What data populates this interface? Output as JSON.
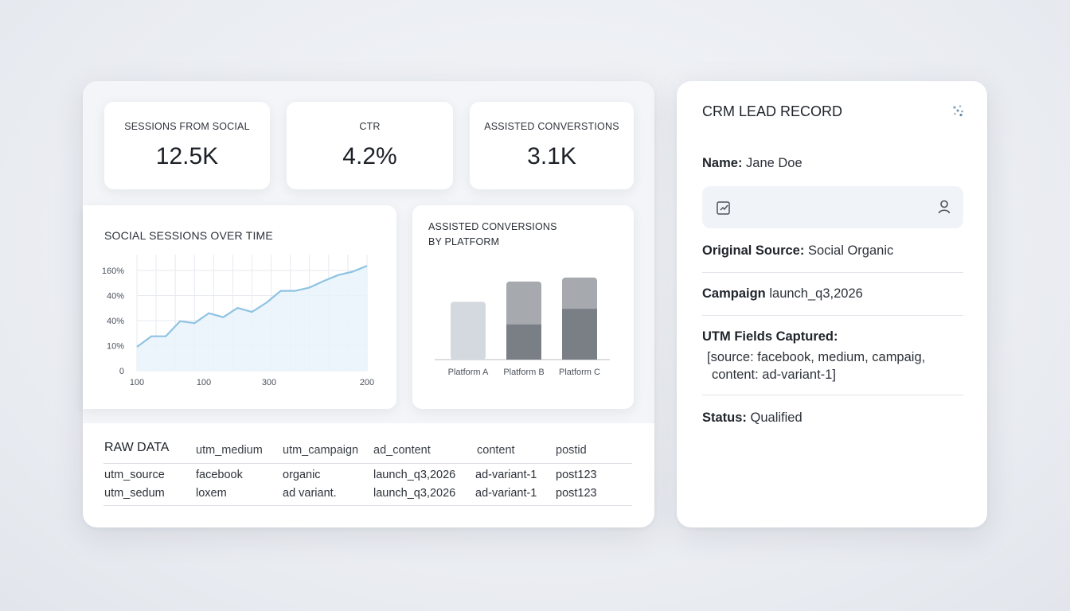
{
  "kpis": [
    {
      "label": "SESSIONS FROM SOCIAL",
      "value": "12.5K"
    },
    {
      "label": "CTR",
      "value": "4.2%"
    },
    {
      "label": "ASSISTED CONVERSTIONS",
      "value": "3.1K"
    }
  ],
  "line_chart": {
    "title": "SOCIAL SESSIONS OVER TIME"
  },
  "bar_chart": {
    "title_line1": "ASSISTED CONVERSIONS",
    "title_line2": "BY PLATFORM"
  },
  "chart_data": [
    {
      "type": "area",
      "title": "SOCIAL SESSIONS OVER TIME",
      "y_tick_labels": [
        "0",
        "10%",
        "40%",
        "40%",
        "160%"
      ],
      "x_tick_labels": [
        "100",
        "100",
        "300",
        "200"
      ],
      "series": [
        {
          "values": [
            0.0,
            0.16,
            0.16,
            0.39,
            0.36,
            0.51,
            0.45,
            0.59,
            0.53,
            0.67,
            0.85,
            0.85,
            0.9,
            1.0,
            1.09,
            1.14,
            1.23
          ]
        }
      ],
      "ylim": [
        0,
        1.4
      ],
      "grid": true,
      "color": "#8ec3e2"
    },
    {
      "type": "bar",
      "title": "ASSISTED CONVERSIONS BY PLATFORM",
      "categories": [
        "Platform A",
        "Platform B",
        "Platform C"
      ],
      "series": [
        {
          "values": [
            74,
            45,
            65
          ]
        },
        {
          "values": [
            0,
            55,
            40
          ]
        }
      ],
      "ylim": [
        0,
        110
      ],
      "colors": [
        "#d4d9df",
        "#7a7f86",
        "#a6aaaf"
      ],
      "stacked": true
    }
  ],
  "raw": {
    "title": "RAW DATA",
    "headers": [
      "utm_medium",
      "utm_campaign",
      "ad_content",
      "content",
      "postid"
    ],
    "rows": [
      [
        "utm_source",
        "facebook",
        "organic",
        "launch_q3,2026",
        "ad-variant-1",
        "post123"
      ],
      [
        "utm_sedum",
        "loxem",
        "ad variant.",
        "launch_q3,2026",
        "ad-variant-1",
        "post123"
      ]
    ]
  },
  "crm": {
    "title": "CRM LEAD RECORD",
    "name_label": "Name:",
    "name_value": "Jane Doe",
    "source_label": "Original Source:",
    "source_value": "Social Organic",
    "campaign_label": "Campaign",
    "campaign_value": "launch_q3,2026",
    "utm_label": "UTM Fields Captured:",
    "utm_line1": "[source: facebook, medium, campaig,",
    "utm_line2": "content: ad-variant-1]",
    "status_label": "Status:",
    "status_value": "Qualified",
    "icons": [
      "scatter-icon",
      "edit-icon",
      "user-icon"
    ]
  },
  "colors": {
    "accent_line": "#8ec3e2",
    "bar_light": "#d4d9df",
    "bar_dark": "#6c7178",
    "bar_mid": "#a6aaaf"
  }
}
